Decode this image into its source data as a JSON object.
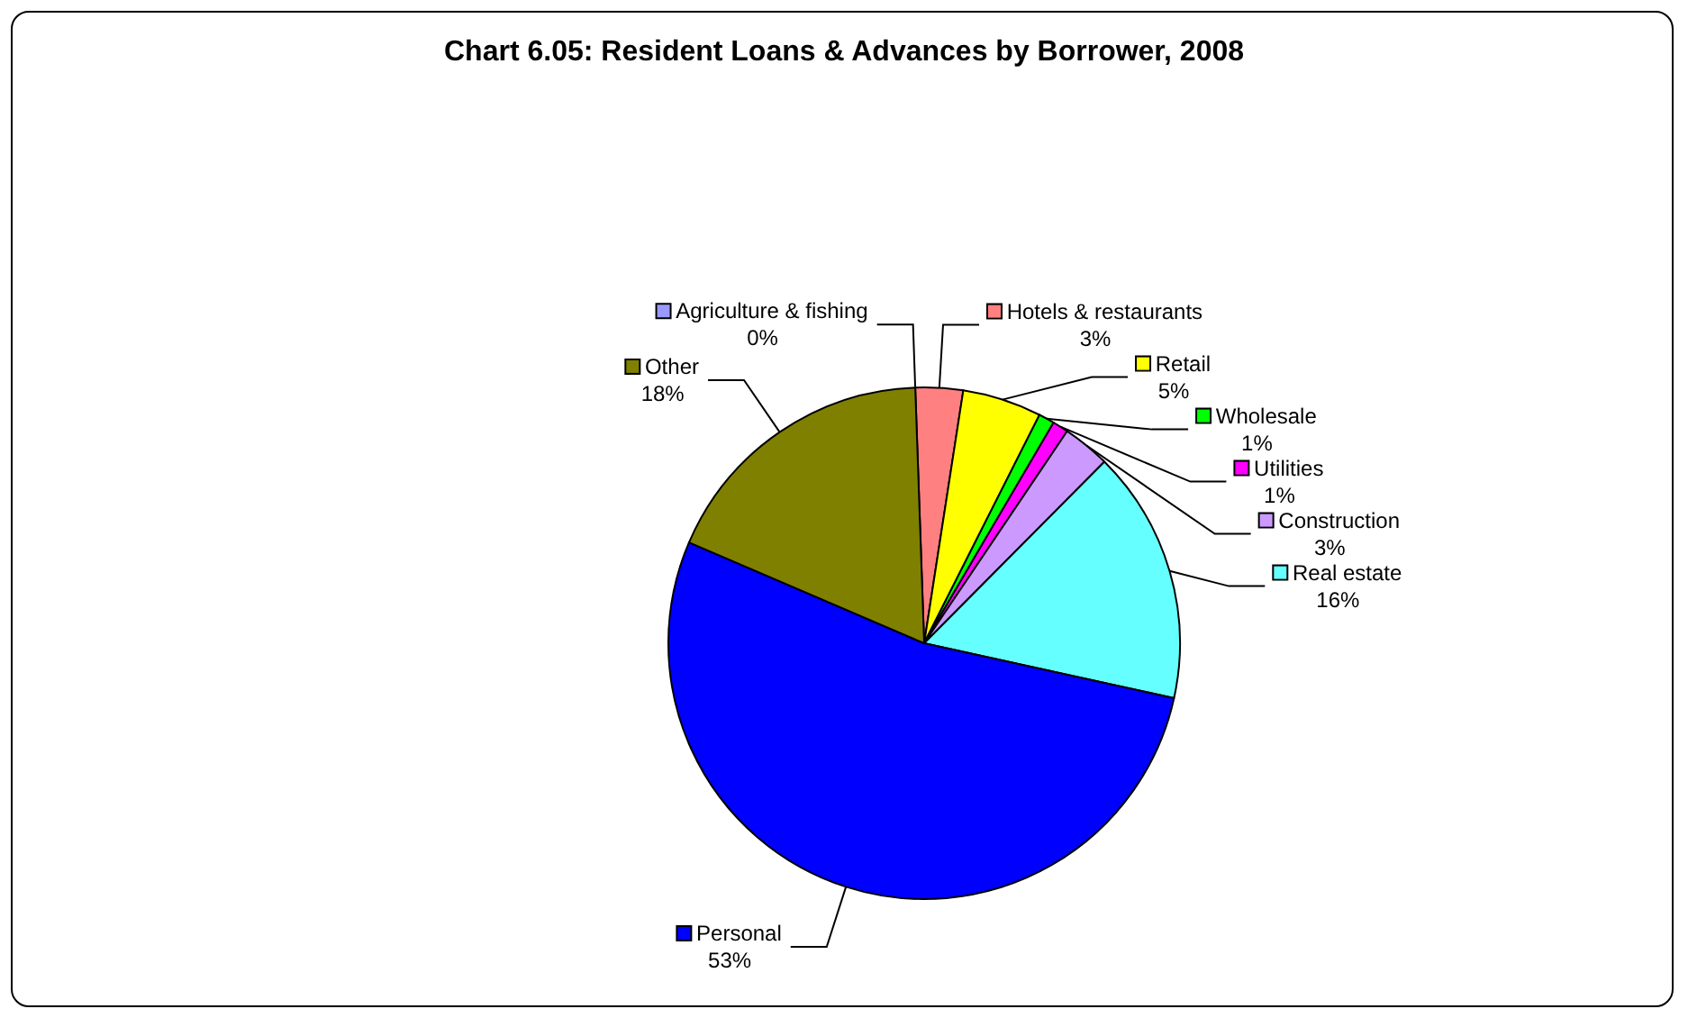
{
  "chart_data": {
    "type": "pie",
    "title": "Chart 6.05: Resident Loans & Advances by Borrower, 2008",
    "categories": [
      "Agriculture & fishing",
      "Hotels & restaurants",
      "Retail",
      "Wholesale",
      "Utilities",
      "Construction",
      "Real estate",
      "Personal",
      "Other"
    ],
    "values": [
      0,
      3,
      5,
      1,
      1,
      3,
      16,
      53,
      18
    ],
    "value_labels": [
      "0%",
      "3%",
      "5%",
      "1%",
      "1%",
      "3%",
      "16%",
      "53%",
      "18%"
    ],
    "legend": "right",
    "colors": [
      "#9999ff",
      "#ff8080",
      "#ffff00",
      "#00ff00",
      "#ff00ff",
      "#cc99ff",
      "#66ffff",
      "#0000ff",
      "#808000"
    ]
  }
}
